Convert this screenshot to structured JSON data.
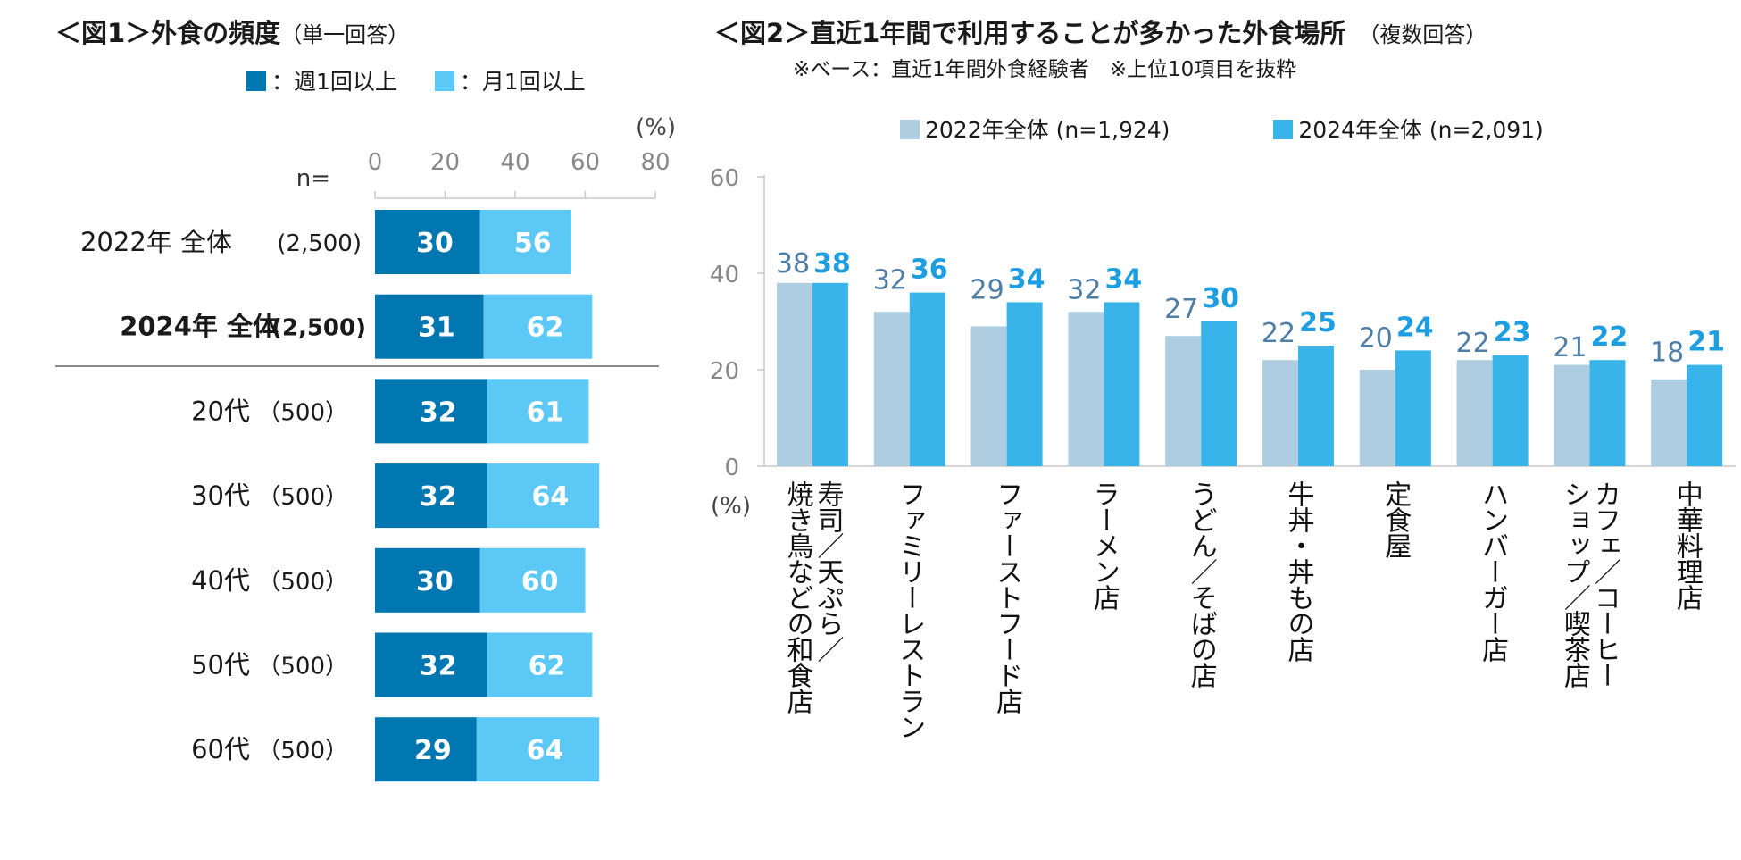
{
  "chart_data": [
    {
      "type": "bar",
      "orientation": "horizontal-stacked",
      "title": "＜図1＞外食の頻度",
      "title_note": "（単一回答）",
      "legend_position": "top",
      "unit_label": "(%)",
      "n_label": "n=",
      "xlim": [
        0,
        80
      ],
      "xticks": [
        "0",
        "20",
        "40",
        "60",
        "80"
      ],
      "colors": {
        "weekly": "#0077b0",
        "monthly": "#5bc8f5"
      },
      "series": [
        {
          "name": "：週1回以上",
          "key": "weekly"
        },
        {
          "name": "：月1回以上",
          "key": "monthly"
        }
      ],
      "rows": [
        {
          "label": "2022年 全体",
          "n": "(2,500)",
          "weekly": 30,
          "monthly": 56,
          "bold": false
        },
        {
          "label": "2024年 全体",
          "n": "(2,500)",
          "weekly": 31,
          "monthly": 62,
          "bold": true
        },
        {
          "label": "20代",
          "n": "（500）",
          "weekly": 32,
          "monthly": 61,
          "bold": false
        },
        {
          "label": "30代",
          "n": "（500）",
          "weekly": 32,
          "monthly": 64,
          "bold": false
        },
        {
          "label": "40代",
          "n": "（500）",
          "weekly": 30,
          "monthly": 60,
          "bold": false
        },
        {
          "label": "50代",
          "n": "（500）",
          "weekly": 32,
          "monthly": 62,
          "bold": false
        },
        {
          "label": "60代",
          "n": "（500）",
          "weekly": 29,
          "monthly": 64,
          "bold": false
        }
      ]
    },
    {
      "type": "bar",
      "orientation": "vertical-grouped",
      "title": "＜図2＞直近1年間で利用することが多かった外食場所",
      "title_note": "（複数回答）",
      "subtitle": "※ベース：直近1年間外食経験者　※上位10項目を抜粋",
      "legend_position": "top",
      "unit_label": "(%)",
      "ylim": [
        0,
        60
      ],
      "yticks": [
        "0",
        "20",
        "40",
        "60"
      ],
      "colors": {
        "y2022": "#aecde1",
        "y2024": "#38b4ea"
      },
      "series": [
        {
          "name": "2022年全体 (n=1,924)",
          "values": [
            38,
            32,
            29,
            32,
            27,
            22,
            20,
            22,
            21,
            18
          ]
        },
        {
          "name": "2024年全体 (n=2,091)",
          "values": [
            38,
            36,
            34,
            34,
            30,
            25,
            24,
            23,
            22,
            21
          ]
        }
      ],
      "categories": [
        [
          "寿司／天ぷら／",
          "焼き鳥などの和食店"
        ],
        [
          "ファミリーレストラン"
        ],
        [
          "ファーストフード店"
        ],
        [
          "ラーメン店"
        ],
        [
          "うどん／そばの店"
        ],
        [
          "牛丼・丼もの店"
        ],
        [
          "定食屋"
        ],
        [
          "ハンバーガー店"
        ],
        [
          "カフェ／コーヒー",
          "ショップ／喫茶店"
        ],
        [
          "中華料理店"
        ]
      ]
    }
  ]
}
